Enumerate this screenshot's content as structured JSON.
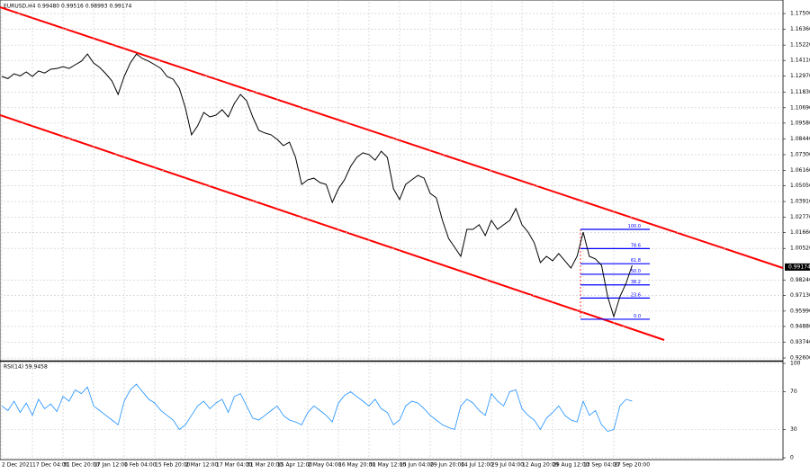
{
  "chart_data": [
    {
      "type": "line",
      "title": "EURUSD,H4 0.99480 0.99516 0.98993 0.99174",
      "categories": [
        "2 Dec 2021",
        null,
        null,
        null,
        null,
        "17 Dec 04:00",
        null,
        null,
        null,
        null,
        "31 Dec 20:00",
        null,
        null,
        null,
        null,
        "17 Jan 12:00",
        null,
        null,
        null,
        null,
        "1 Feb 04:00",
        null,
        null,
        null,
        null,
        "15 Feb 20:00",
        null,
        null,
        null,
        null,
        "2 Mar 12:00",
        null,
        null,
        null,
        null,
        "17 Mar 04:00",
        null,
        null,
        null,
        null,
        "31 Mar 20:00",
        null,
        null,
        null,
        null,
        "15 Apr 12:00",
        null,
        null,
        null,
        null,
        "2 May 04:00",
        null,
        null,
        null,
        null,
        "16 May 20:00",
        null,
        null,
        null,
        null,
        "31 May 12:00",
        null,
        null,
        null,
        null,
        "15 Jun 04:00",
        null,
        null,
        null,
        null,
        "29 Jun 20:00",
        null,
        null,
        null,
        null,
        "14 Jul 12:00",
        null,
        null,
        null,
        null,
        "29 Jul 04:00",
        null,
        null,
        null,
        null,
        "12 Aug 20:00",
        null,
        null,
        null,
        null,
        "29 Aug 12:00",
        null,
        null,
        null,
        null,
        "13 Sep 04:00",
        null,
        null,
        null,
        null,
        "27 Sep 20:00",
        null,
        null,
        null
      ],
      "values": [
        1.1295,
        1.128,
        1.1315,
        1.13,
        1.1328,
        1.1295,
        1.1335,
        1.132,
        1.1347,
        1.1353,
        1.1366,
        1.1353,
        1.138,
        1.1405,
        1.1457,
        1.1393,
        1.136,
        1.1315,
        1.1263,
        1.1165,
        1.1295,
        1.1393,
        1.1457,
        1.1425,
        1.1405,
        1.138,
        1.1353,
        1.1295,
        1.1275,
        1.121,
        1.1068,
        1.0873,
        1.0938,
        1.1035,
        1.1003,
        1.1016,
        1.1055,
        1.1003,
        1.11,
        1.1165,
        1.112,
        1.1003,
        1.0905,
        1.0886,
        1.0873,
        1.084,
        1.0795,
        1.082,
        1.071,
        1.0515,
        1.0548,
        1.056,
        1.0528,
        1.0515,
        1.0385,
        1.0483,
        1.0548,
        1.0645,
        1.071,
        1.0743,
        1.073,
        1.069,
        1.0755,
        1.071,
        1.0483,
        1.0405,
        1.0515,
        1.0548,
        1.058,
        1.056,
        1.045,
        1.0418,
        1.0255,
        1.0125,
        1.006,
        0.9995,
        1.019,
        1.019,
        1.0223,
        1.0145,
        1.0255,
        1.019,
        1.0223,
        1.0255,
        1.034,
        1.0223,
        1.017,
        1.0093,
        0.995,
        0.9995,
        0.9963,
        1.0015,
        0.9963,
        0.991,
        0.9995,
        1.017,
        0.9995,
        0.9976,
        0.993,
        0.9703,
        0.956,
        0.9703,
        0.98,
        0.9929
      ],
      "color": "#000000",
      "ylim": [
        0.9247,
        1.1835
      ],
      "yticks": [
        {
          "value": 1.175,
          "label": "1.17500"
        },
        {
          "value": 1.1636,
          "label": "1.16360"
        },
        {
          "value": 1.1522,
          "label": "1.15220"
        },
        {
          "value": 1.1411,
          "label": "1.14110"
        },
        {
          "value": 1.1297,
          "label": "1.12970"
        },
        {
          "value": 1.1183,
          "label": "1.11830"
        },
        {
          "value": 1.1069,
          "label": "1.10690"
        },
        {
          "value": 1.0958,
          "label": "1.09580"
        },
        {
          "value": 1.0844,
          "label": "1.08440"
        },
        {
          "value": 1.073,
          "label": "1.07300"
        },
        {
          "value": 1.0616,
          "label": "1.06160"
        },
        {
          "value": 1.0505,
          "label": "1.05050"
        },
        {
          "value": 1.0391,
          "label": "1.03910"
        },
        {
          "value": 1.0277,
          "label": "1.02770"
        },
        {
          "value": 1.0166,
          "label": "1.01660"
        },
        {
          "value": 1.0052,
          "label": "1.00520"
        },
        {
          "value": 0.9824,
          "label": "0.98240"
        },
        {
          "value": 0.9713,
          "label": "0.97130"
        },
        {
          "value": 0.9599,
          "label": "0.95990"
        },
        {
          "value": 0.9488,
          "label": "0.94880"
        },
        {
          "value": 0.9374,
          "label": "0.93740"
        },
        {
          "value": 0.926,
          "label": "0.92600"
        }
      ],
      "grid": true,
      "last_price": 0.99174,
      "fibonacci": {
        "high": 1.019,
        "low": 0.954,
        "color": "#0000ff",
        "levels": [
          {
            "value": 100,
            "label": "100.0"
          },
          {
            "value": 78.6,
            "label": "78.6"
          },
          {
            "value": 61.8,
            "label": "61.8"
          },
          {
            "value": 50,
            "label": "50.0"
          },
          {
            "value": 38.2,
            "label": "38.2"
          },
          {
            "value": 23.6,
            "label": "23.6"
          },
          {
            "value": 0,
            "label": "0.0"
          }
        ]
      }
    },
    {
      "type": "line",
      "title": "RSI(14) 59.9458",
      "values": [
        55,
        50,
        60,
        48,
        58,
        45,
        62,
        52,
        57,
        49,
        65,
        60,
        72,
        68,
        75,
        55,
        50,
        45,
        40,
        35,
        60,
        72,
        78,
        70,
        62,
        58,
        50,
        45,
        40,
        30,
        35,
        45,
        55,
        60,
        52,
        58,
        62,
        48,
        65,
        68,
        55,
        42,
        40,
        45,
        50,
        55,
        45,
        40,
        38,
        35,
        48,
        55,
        50,
        45,
        38,
        58,
        66,
        70,
        65,
        60,
        55,
        62,
        52,
        48,
        35,
        40,
        55,
        60,
        58,
        52,
        45,
        40,
        35,
        32,
        30,
        55,
        62,
        58,
        50,
        45,
        68,
        60,
        55,
        70,
        72,
        52,
        45,
        40,
        30,
        42,
        48,
        55,
        45,
        40,
        38,
        60,
        45,
        50,
        35,
        28,
        30,
        55,
        62,
        60
      ],
      "color": "#1e90ff",
      "ylim": [
        0,
        100
      ],
      "yticks": [
        100,
        70,
        30,
        0
      ],
      "grid": true
    }
  ]
}
